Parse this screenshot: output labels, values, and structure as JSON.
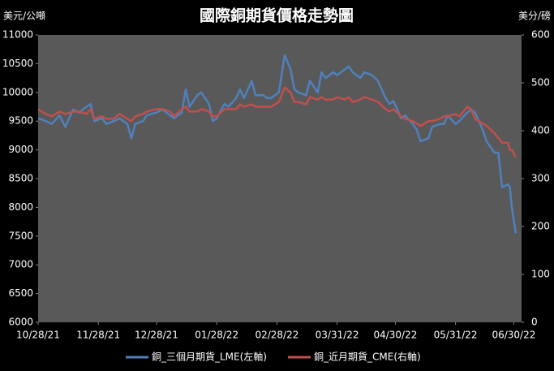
{
  "chart_data": {
    "type": "line",
    "title": "國際銅期貨價格走勢圖",
    "y_label": "美元/公噸",
    "y2_label": "美分/磅",
    "x": [
      "10/28/21",
      "11/01/21",
      "11/04/21",
      "11/08/21",
      "11/11/21",
      "11/15/21",
      "11/18/21",
      "11/22/21",
      "11/24/21",
      "11/26/21",
      "11/30/21",
      "12/02/21",
      "12/06/21",
      "12/09/21",
      "12/13/21",
      "12/15/21",
      "12/17/21",
      "12/21/21",
      "12/23/21",
      "12/28/21",
      "12/31/21",
      "01/04/22",
      "01/06/22",
      "01/10/22",
      "01/12/22",
      "01/14/22",
      "01/18/22",
      "01/20/22",
      "01/24/22",
      "01/26/22",
      "01/28/22",
      "02/01/22",
      "02/03/22",
      "02/07/22",
      "02/09/22",
      "02/11/22",
      "02/15/22",
      "02/17/22",
      "02/21/22",
      "02/23/22",
      "02/25/22",
      "03/01/22",
      "03/04/22",
      "03/07/22",
      "03/09/22",
      "03/11/22",
      "03/15/22",
      "03/17/22",
      "03/21/22",
      "03/23/22",
      "03/25/22",
      "03/29/22",
      "03/31/22",
      "04/04/22",
      "04/06/22",
      "04/08/22",
      "04/12/22",
      "04/14/22",
      "04/18/22",
      "04/21/22",
      "04/25/22",
      "04/27/22",
      "04/29/22",
      "05/03/22",
      "05/05/22",
      "05/09/22",
      "05/11/22",
      "05/13/22",
      "05/17/22",
      "05/19/22",
      "05/23/22",
      "05/25/22",
      "05/27/22",
      "05/31/22",
      "06/02/22",
      "06/06/22",
      "06/08/22",
      "06/10/22",
      "06/14/22",
      "06/16/22",
      "06/20/22",
      "06/22/22",
      "06/24/22",
      "06/27/22",
      "06/28/22",
      "06/29/22",
      "07/01/22"
    ],
    "series": [
      {
        "name": "銅_三個月期貨_LME(左軸)",
        "color": "#4f81bd",
        "axis": "y",
        "values": [
          9550,
          9500,
          9450,
          9600,
          9400,
          9700,
          9650,
          9750,
          9800,
          9500,
          9550,
          9450,
          9500,
          9550,
          9450,
          9200,
          9450,
          9500,
          9600,
          9650,
          9700,
          9600,
          9550,
          9650,
          10050,
          9750,
          9950,
          10000,
          9800,
          9500,
          9550,
          9800,
          9750,
          9900,
          10050,
          9900,
          10200,
          9950,
          9950,
          9900,
          9900,
          10000,
          10650,
          10400,
          10050,
          10000,
          9950,
          10200,
          10000,
          10350,
          10250,
          10350,
          10300,
          10400,
          10450,
          10350,
          10250,
          10350,
          10300,
          10200,
          9900,
          9800,
          9850,
          9550,
          9600,
          9450,
          9350,
          9150,
          9200,
          9400,
          9450,
          9450,
          9600,
          9450,
          9500,
          9650,
          9700,
          9650,
          9350,
          9150,
          8950,
          8950,
          8350,
          8400,
          8350,
          8000,
          7550
        ]
      },
      {
        "name": "銅_近月期貨_CME(右軸)",
        "color": "#c0504d",
        "axis": "y2",
        "values": [
          445,
          435,
          430,
          440,
          435,
          440,
          440,
          435,
          445,
          425,
          430,
          425,
          425,
          435,
          425,
          420,
          430,
          435,
          440,
          445,
          445,
          440,
          430,
          445,
          450,
          440,
          440,
          445,
          440,
          430,
          430,
          445,
          445,
          445,
          455,
          450,
          455,
          450,
          450,
          450,
          450,
          460,
          490,
          480,
          460,
          460,
          455,
          470,
          465,
          470,
          465,
          465,
          470,
          465,
          470,
          460,
          465,
          470,
          465,
          460,
          445,
          440,
          445,
          430,
          425,
          420,
          415,
          410,
          420,
          420,
          425,
          430,
          430,
          435,
          430,
          450,
          445,
          425,
          415,
          410,
          395,
          385,
          375,
          375,
          360,
          360,
          345
        ]
      }
    ],
    "xlim": [
      "10/28/21",
      "07/04/22"
    ],
    "xticks": [
      "10/28/21",
      "11/28/21",
      "12/28/21",
      "01/28/22",
      "02/28/22",
      "03/31/22",
      "04/30/22",
      "05/31/22",
      "06/30/22"
    ],
    "ylim": [
      6000,
      11000
    ],
    "yticks": [
      6000,
      6500,
      7000,
      7500,
      8000,
      8500,
      9000,
      9500,
      10000,
      10500,
      11000
    ],
    "y2lim": [
      0,
      600
    ],
    "y2ticks": [
      0,
      100,
      200,
      300,
      400,
      500,
      600
    ],
    "legend": "bottom"
  }
}
